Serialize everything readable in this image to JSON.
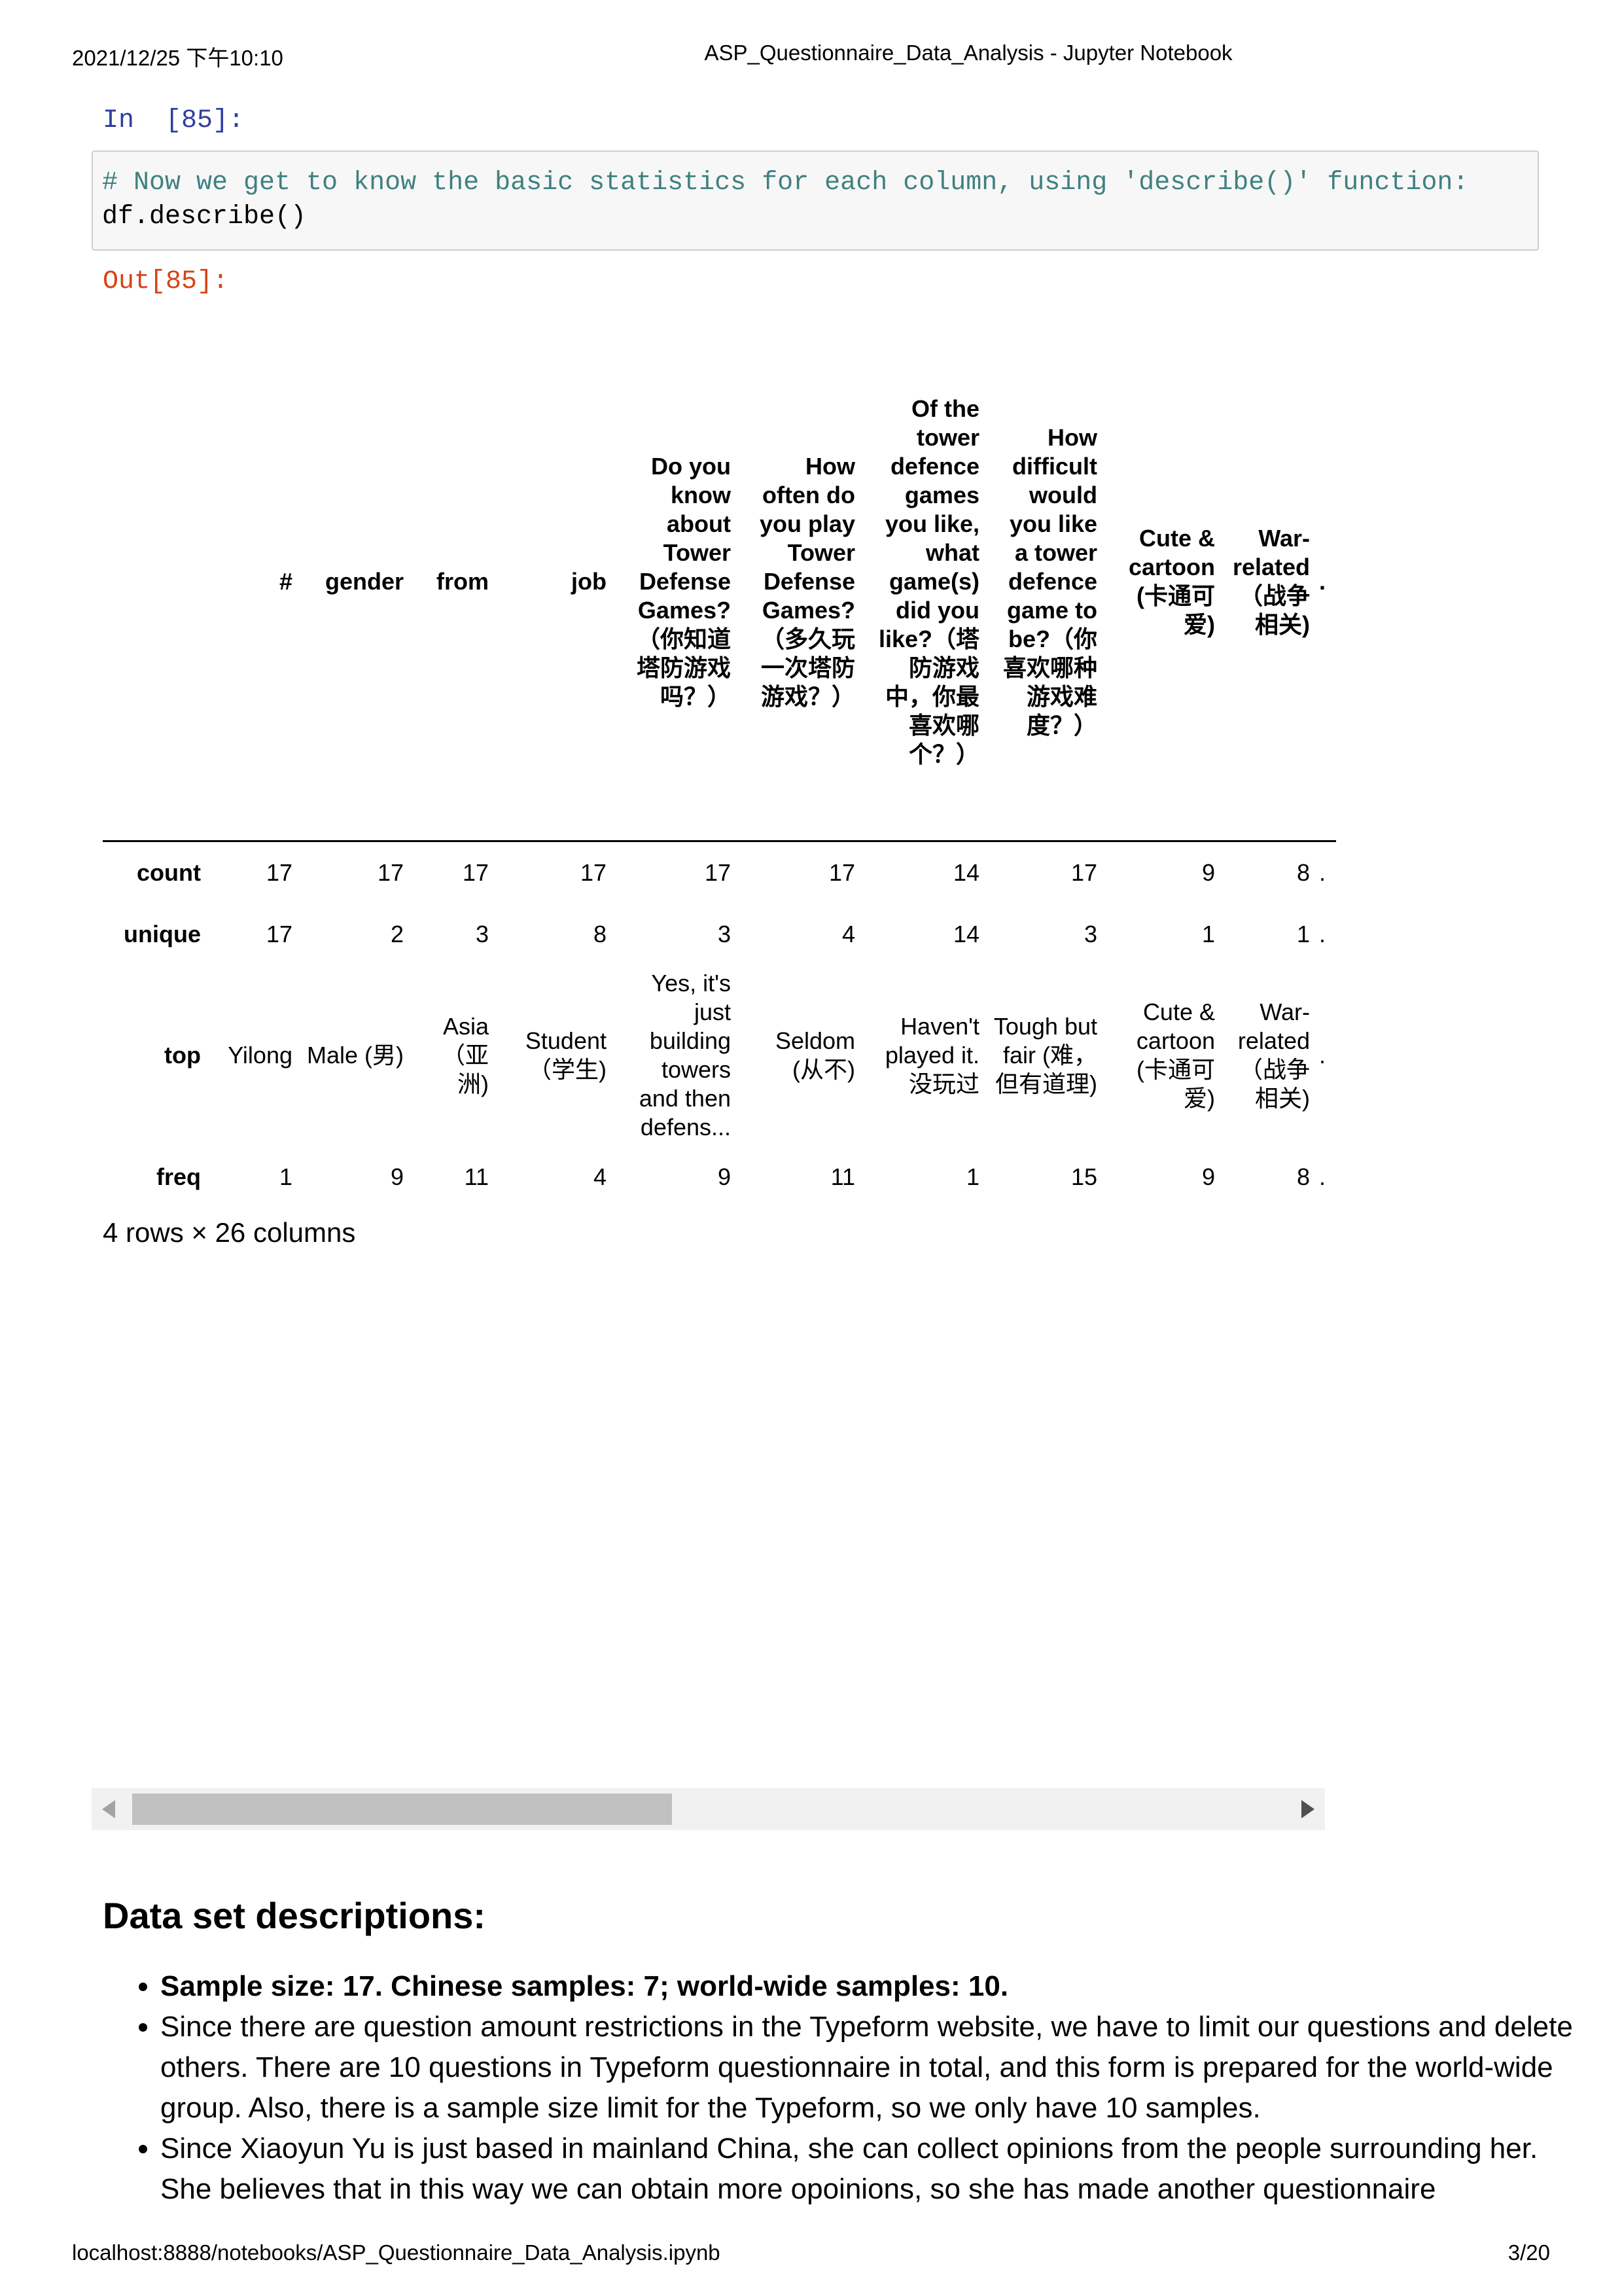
{
  "header": {
    "datetime": "2021/12/25 下午10:10",
    "title": "ASP_Questionnaire_Data_Analysis - Jupyter Notebook"
  },
  "cell": {
    "in_prompt": "In  [85]:",
    "code_comment": "# Now we get to know the basic statistics for each column, using 'describe()' function:",
    "code_line": "df.describe()",
    "out_prompt": "Out[85]:"
  },
  "table": {
    "columns": [
      "",
      "#",
      "gender",
      "from",
      "job",
      "Do you know about Tower Defense Games?（你知道塔防游戏吗？）",
      "How often do you play Tower Defense Games?（多久玩一次塔防游戏？）",
      "Of the tower defence games you like, what game(s) did you like?（塔防游戏中，你最喜欢哪个？）",
      "How difficult would you like a tower defence game to be?（你喜欢哪种游戏难度？）",
      "Cute & cartoon (卡通可爱)",
      "War-related （战争相关)"
    ],
    "rows": [
      {
        "label": "count",
        "values": [
          "17",
          "17",
          "17",
          "17",
          "17",
          "17",
          "14",
          "17",
          "9",
          "8"
        ]
      },
      {
        "label": "unique",
        "values": [
          "17",
          "2",
          "3",
          "8",
          "3",
          "4",
          "14",
          "3",
          "1",
          "1"
        ]
      },
      {
        "label": "top",
        "values": [
          "Yilong",
          "Male (男)",
          "Asia （亚洲)",
          "Student （学生)",
          "Yes, it's just building towers and then defens...",
          "Seldom (从不)",
          "Haven't played it. 没玩过",
          "Tough but fair (难，但有道理)",
          "Cute & cartoon (卡通可爱)",
          "War-related （战争相关)"
        ]
      },
      {
        "label": "freq",
        "values": [
          "1",
          "9",
          "11",
          "4",
          "9",
          "11",
          "1",
          "15",
          "9",
          "8"
        ]
      }
    ],
    "ellipsis": "."
  },
  "shape_note": "4 rows × 26 columns",
  "markdown": {
    "heading": "Data set descriptions:",
    "bullets": [
      "Sample size: 17. Chinese samples: 7; world-wide samples: 10.",
      "Since there are question amount restrictions in the Typeform website, we have to limit our questions and delete others. There are 10 questions in Typeform questionnaire in total, and this form is prepared for the world-wide group. Also, there is a sample size limit for the Typeform, so we only have 10 samples.",
      "Since Xiaoyun Yu is just based in mainland China, she can collect opinions from the people surrounding her. She believes that in this way we can obtain more opoinions, so she has made another questionnaire"
    ]
  },
  "footer": {
    "url": "localhost:8888/notebooks/ASP_Questionnaire_Data_Analysis.ipynb",
    "page": "3/20"
  }
}
